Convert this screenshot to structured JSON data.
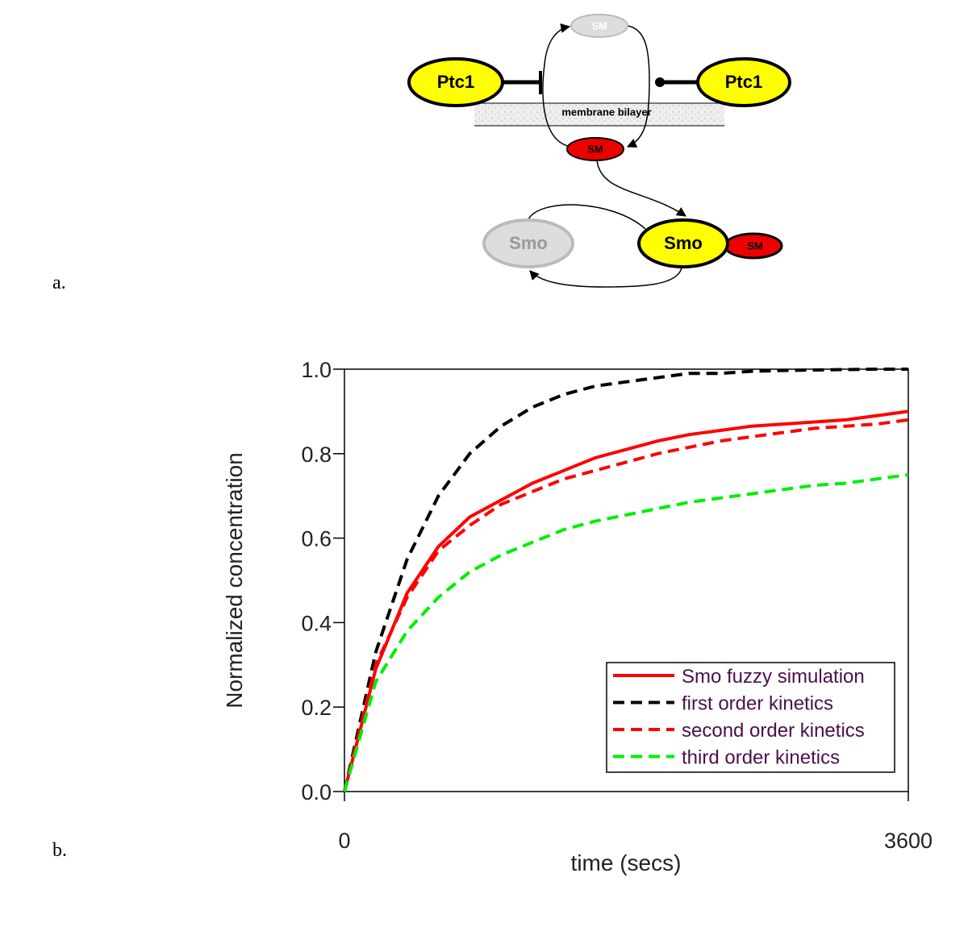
{
  "panels": {
    "a": "a.",
    "b": "b."
  },
  "diagram": {
    "sm_top": "SM",
    "ptc1_left": "Ptc1",
    "ptc1_right": "Ptc1",
    "membrane": "membrane bilayer",
    "sm_bound": "SM",
    "smo_inactive": "Smo",
    "smo_active": "Smo",
    "sm_complex": "SM"
  },
  "chart_data": {
    "type": "line",
    "xlabel": "time (secs)",
    "ylabel": "Normalized concentration",
    "x": [
      0,
      200,
      400,
      600,
      800,
      1000,
      1200,
      1400,
      1600,
      1800,
      2000,
      2200,
      2400,
      2600,
      2800,
      3000,
      3200,
      3400,
      3600
    ],
    "xlim": [
      0,
      3600
    ],
    "xticks": [
      0,
      3600
    ],
    "ylim": [
      0,
      1
    ],
    "yticks": [
      {
        "value": 0,
        "label": "0.0"
      },
      0.2,
      0.4,
      0.6,
      0.8,
      {
        "value": 1,
        "label": "1.0"
      }
    ],
    "grid": false,
    "legend": "lower right",
    "series": [
      {
        "name": "Smo fuzzy simulation",
        "color": "#ff0000",
        "linestyle": "solid",
        "values": [
          0,
          0.29,
          0.47,
          0.58,
          0.65,
          0.69,
          0.73,
          0.76,
          0.79,
          0.81,
          0.83,
          0.845,
          0.855,
          0.865,
          0.87,
          0.875,
          0.88,
          0.89,
          0.9
        ]
      },
      {
        "name": "first order kinetics",
        "color": "#000000",
        "linestyle": "dashed",
        "values": [
          0,
          0.33,
          0.55,
          0.7,
          0.8,
          0.865,
          0.91,
          0.94,
          0.96,
          0.97,
          0.98,
          0.99,
          0.99,
          0.995,
          0.997,
          0.998,
          0.999,
          1,
          1
        ]
      },
      {
        "name": "second order kinetics",
        "color": "#ff0000",
        "linestyle": "dashed",
        "values": [
          0,
          0.3,
          0.46,
          0.57,
          0.63,
          0.68,
          0.71,
          0.74,
          0.76,
          0.78,
          0.8,
          0.815,
          0.83,
          0.84,
          0.85,
          0.86,
          0.865,
          0.87,
          0.88
        ]
      },
      {
        "name": "third order kinetics",
        "color": "#00ee00",
        "linestyle": "dashed",
        "values": [
          0,
          0.26,
          0.38,
          0.46,
          0.52,
          0.56,
          0.59,
          0.62,
          0.64,
          0.655,
          0.67,
          0.685,
          0.695,
          0.705,
          0.715,
          0.725,
          0.73,
          0.74,
          0.75
        ]
      }
    ]
  }
}
